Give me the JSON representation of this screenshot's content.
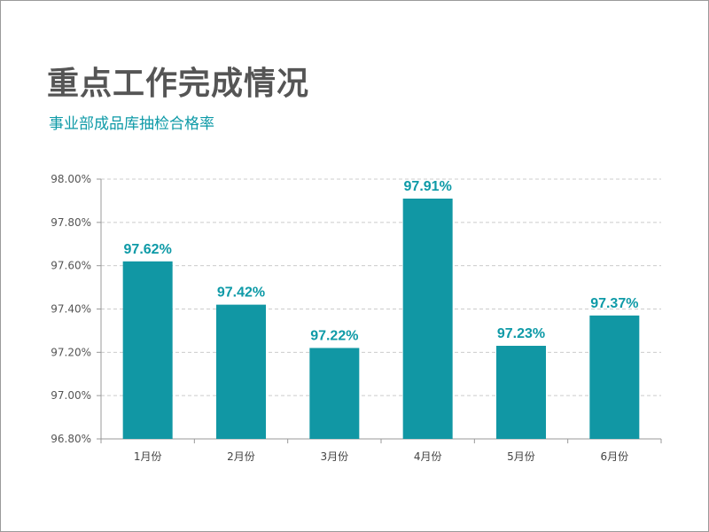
{
  "header": {
    "title": "重点工作完成情况",
    "subtitle": "事业部成品库抽检合格率"
  },
  "colors": {
    "bar": "#1197a4",
    "label": "#0e9aa7",
    "title": "#555555",
    "grid": "#cccccc"
  },
  "chart_data": {
    "type": "bar",
    "categories": [
      "1月份",
      "2月份",
      "3月份",
      "4月份",
      "5月份",
      "6月份"
    ],
    "values": [
      97.62,
      97.42,
      97.22,
      97.91,
      97.23,
      97.37
    ],
    "data_labels": [
      "97.62%",
      "97.42%",
      "97.22%",
      "97.91%",
      "97.23%",
      "97.37%"
    ],
    "yticks": [
      96.8,
      97.0,
      97.2,
      97.4,
      97.6,
      97.8,
      98.0
    ],
    "ytick_labels": [
      "96.80%",
      "97.00%",
      "97.20%",
      "97.40%",
      "97.60%",
      "97.80%",
      "98.00%"
    ],
    "ylim": [
      96.8,
      98.0
    ],
    "grid": true,
    "legend": false,
    "xlabel": "",
    "ylabel": ""
  }
}
